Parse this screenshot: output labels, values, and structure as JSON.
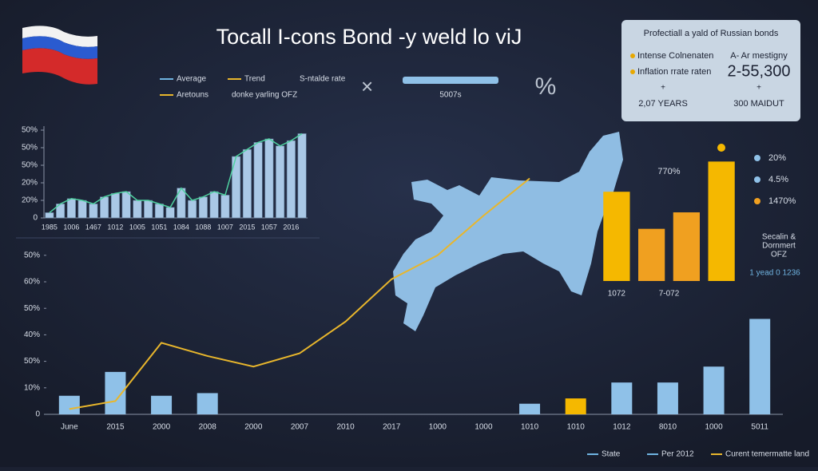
{
  "title": "Tocall I-cons Bond -y weld lo viJ",
  "top_legend": {
    "items": [
      "Average",
      "Trend",
      "S-ntalde rate",
      "Aretouns",
      "donke yarling OFZ"
    ],
    "colors": [
      "#6fb3e0",
      "#e8b62c",
      null,
      "#e8b62c",
      null
    ],
    "bar_label": "5007s",
    "symbol": "%"
  },
  "info_box": {
    "title": "Profectiall a yald of Russian bonds",
    "rows": [
      [
        "Intense Colnenaten",
        "A- Ar mestigny"
      ],
      [
        "Inflation rrate raten",
        "2-55,300"
      ],
      [
        "2,07 YEARS",
        "300 MAIDUT"
      ]
    ]
  },
  "side_legend": {
    "items": [
      "20%",
      "4.5%",
      "1470%"
    ],
    "colors": [
      "#8fc1e8",
      "#8fc1e8",
      "#f0a020"
    ],
    "note": [
      "Secalin &",
      "Dornmert",
      "OFZ"
    ],
    "sub": "1 yead 0 1236"
  },
  "bottom_legend": {
    "items": [
      "State",
      "Per 2012",
      "Curent temermatte land"
    ],
    "colors": [
      "#6fb3e0",
      "#6fb3e0",
      "#e8b62c"
    ]
  },
  "chart_data": [
    {
      "type": "bar-line",
      "categories": [
        "1985",
        null,
        "1006",
        null,
        "1467",
        null,
        "1012",
        null,
        "1005",
        null,
        "1051",
        null,
        "1084",
        null,
        "1088",
        null,
        "1007",
        null,
        "2015",
        null,
        "1057",
        null,
        "2016",
        null
      ],
      "values": [
        3,
        8,
        11,
        10,
        8,
        12,
        14,
        15,
        10,
        10,
        8,
        6,
        17,
        10,
        12,
        15,
        13,
        35,
        39,
        43,
        45,
        41,
        44,
        48
      ],
      "color": "#a9c8e6",
      "line_color": "#4fd1a0",
      "ylim": [
        0,
        50
      ],
      "yticks": [
        0,
        {
          "value": 10,
          "label": "20%"
        },
        {
          "value": 20,
          "label": "20%"
        },
        {
          "value": 30,
          "label": "50%"
        },
        {
          "value": 40,
          "label": "50%"
        },
        {
          "value": 50,
          "label": "50%"
        }
      ]
    },
    {
      "type": "combo",
      "categories": [
        "June",
        "2015",
        "2000",
        "2008",
        "2000",
        "2007",
        "2010",
        "2017",
        "1000",
        "1000",
        "1010",
        "1010",
        "1012",
        "8010",
        "1000",
        "5011"
      ],
      "series": [
        {
          "kind": "bar",
          "color": "#8fc1e8",
          "values": [
            7,
            16,
            7,
            8,
            null,
            null,
            null,
            null,
            null,
            null,
            4,
            null,
            12,
            12,
            18,
            36
          ]
        },
        {
          "kind": "bar",
          "color": "#f5b800",
          "values": [
            null,
            null,
            null,
            null,
            null,
            null,
            null,
            null,
            null,
            null,
            null,
            6,
            null,
            null,
            null,
            null
          ]
        },
        {
          "kind": "line",
          "color": "#e8b62c",
          "values": [
            2,
            5,
            27,
            22,
            18,
            23,
            35,
            51,
            60,
            75,
            89,
            null,
            null,
            null,
            null,
            null
          ]
        }
      ],
      "ylim": [
        0,
        100
      ],
      "yticks": [
        0,
        {
          "value": 10,
          "label": "10%"
        },
        {
          "value": 20,
          "label": "50%"
        },
        {
          "value": 30,
          "label": "40%"
        },
        {
          "value": 40,
          "label": "50%"
        },
        {
          "value": 50,
          "label": "60%"
        },
        {
          "value": 60,
          "label": "50%"
        }
      ]
    },
    {
      "type": "bar",
      "categories": [
        "1072",
        null,
        "7-072",
        null
      ],
      "values": [
        65,
        38,
        50,
        87
      ],
      "colors": [
        "#f5b800",
        "#f0a020",
        "#f0a020",
        "#f5b800"
      ],
      "ylim": [
        0,
        100
      ],
      "annotation": "770%"
    }
  ]
}
